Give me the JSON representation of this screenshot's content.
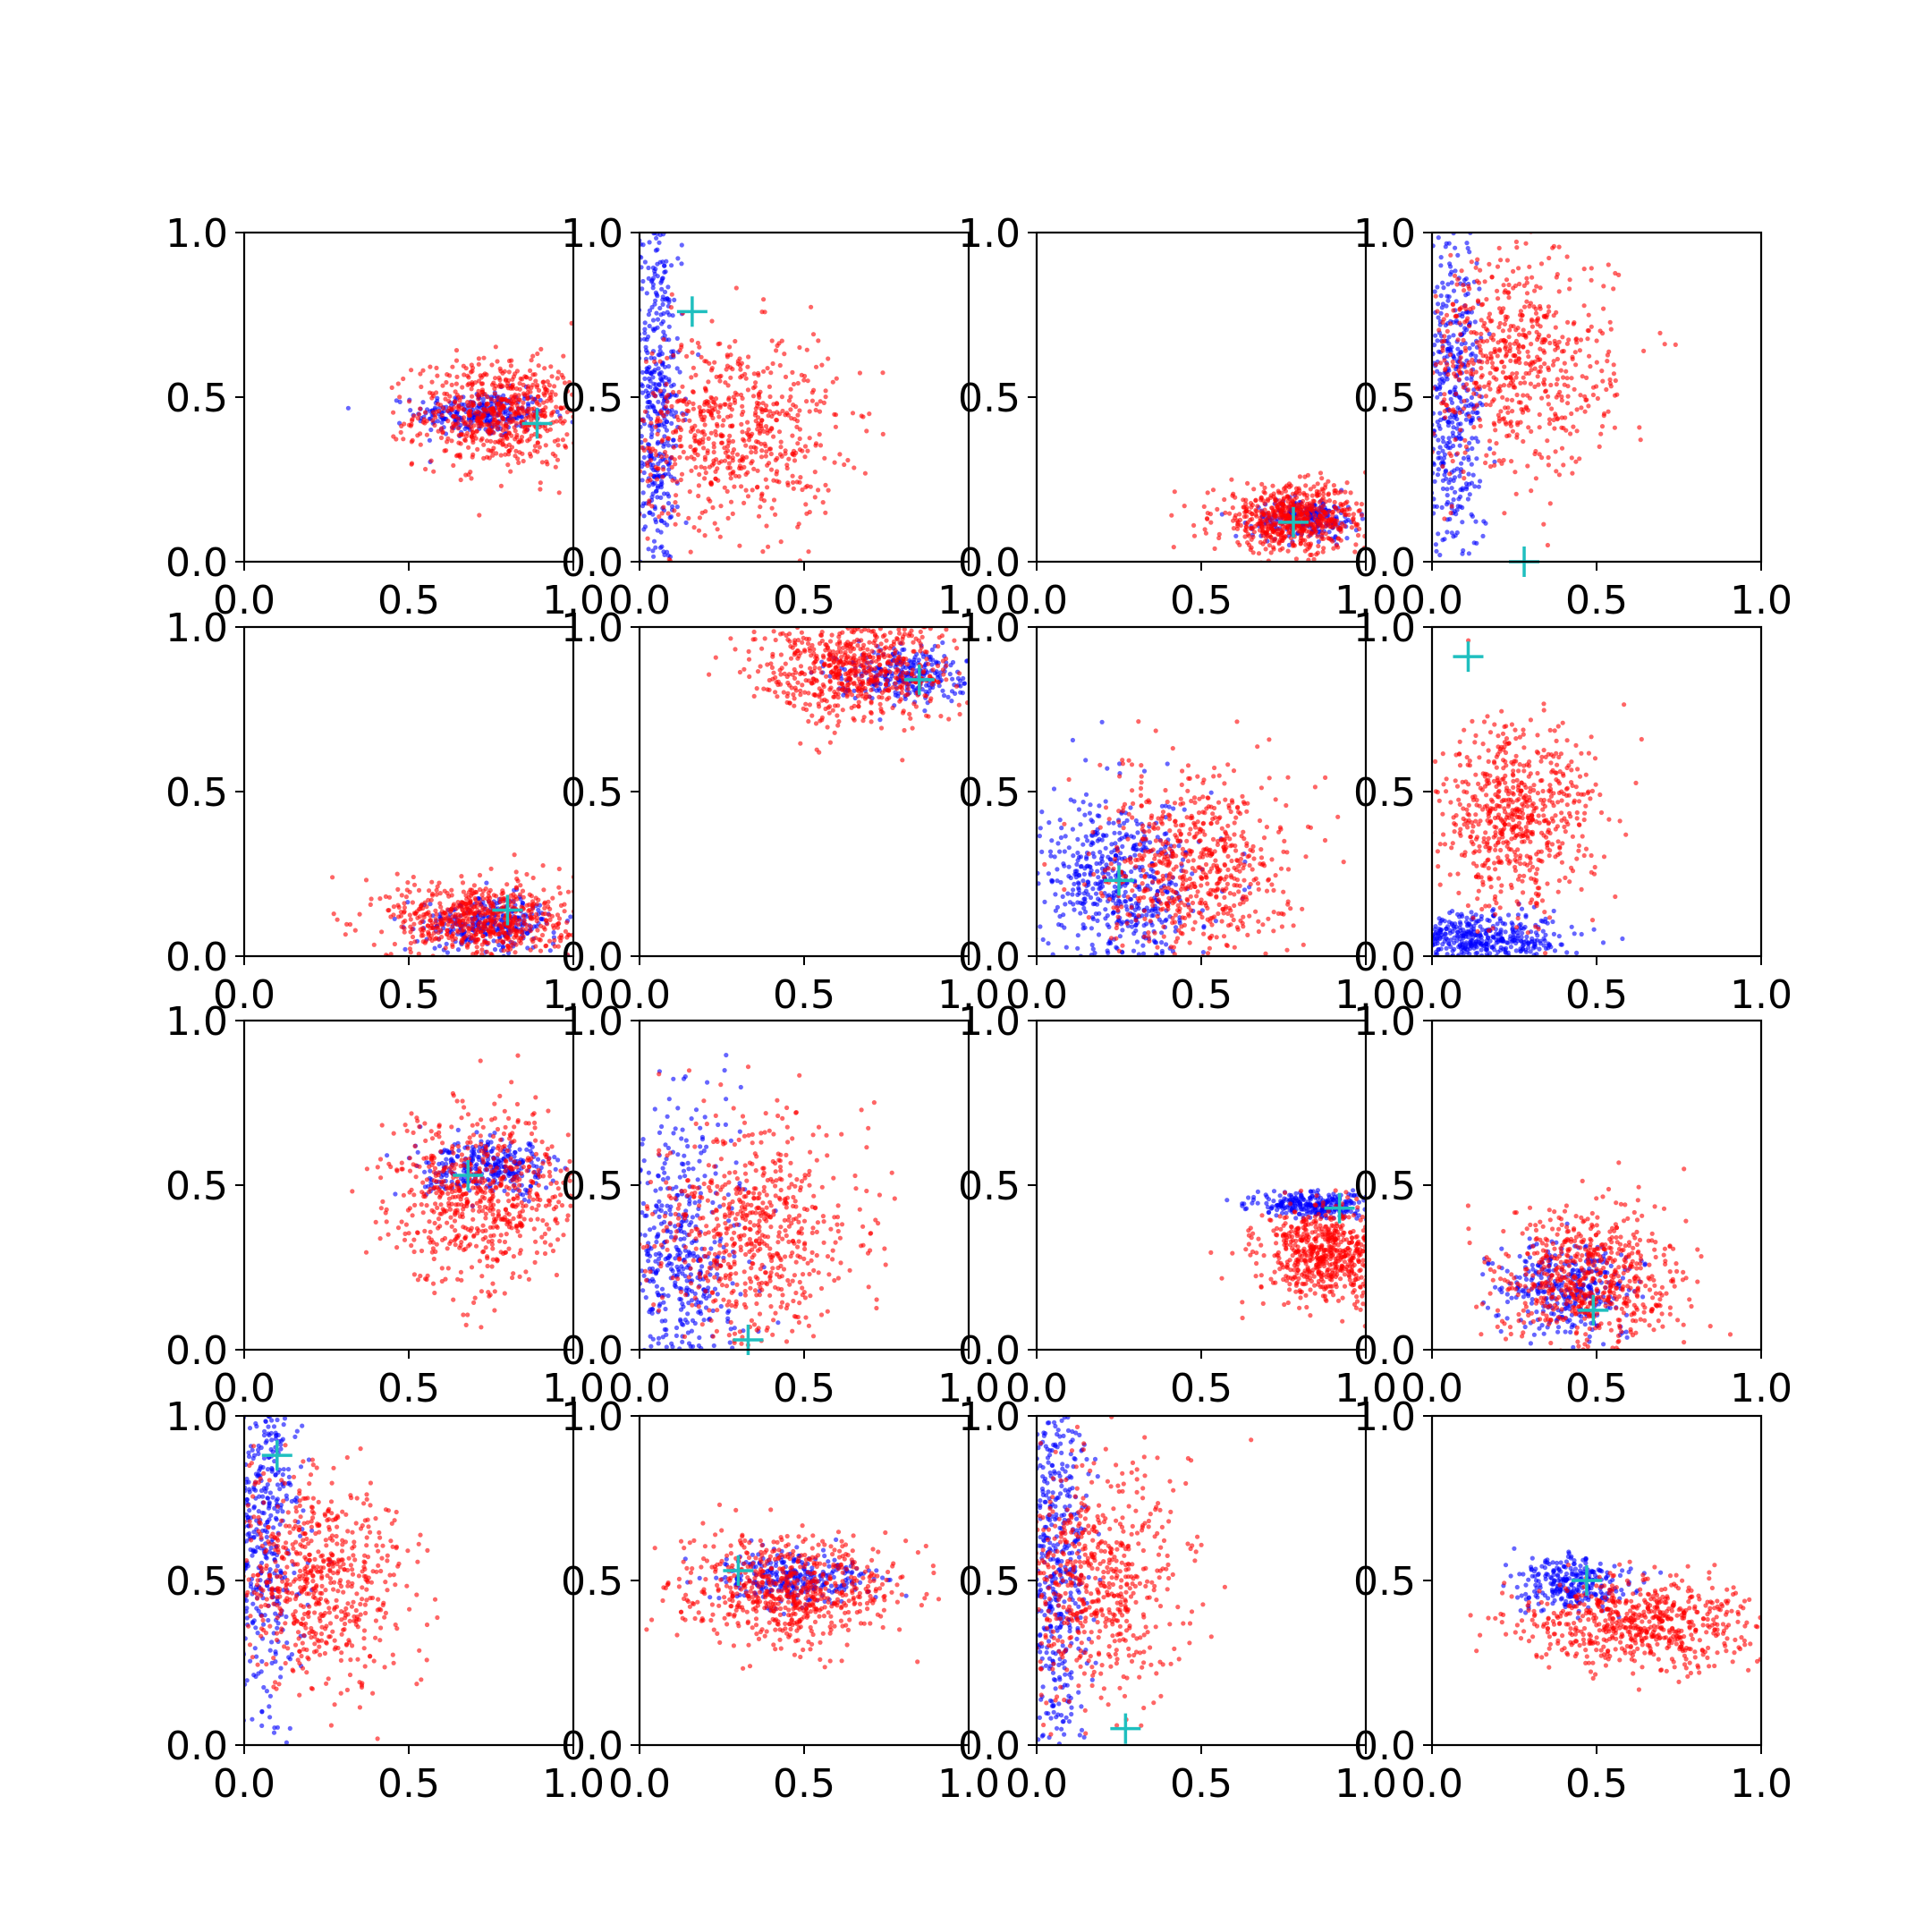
{
  "figure": {
    "background": "#ffffff"
  },
  "chart_data": {
    "type": "scatter",
    "grid_rows": 4,
    "grid_cols": 4,
    "xlim": [
      0,
      1
    ],
    "ylim": [
      0,
      1
    ],
    "x_ticks": [
      "0.0",
      "0.5",
      "1.0"
    ],
    "y_ticks": [
      "0.0",
      "0.5",
      "1.0"
    ],
    "grid": false,
    "legend": "none",
    "colors": {
      "series_blue": "#0000ff",
      "series_red": "#ff0000",
      "marker": "#1fbfbf"
    },
    "panels": [
      {
        "blue": {
          "cx": 0.72,
          "cy": 0.45,
          "sx": 0.1,
          "sy": 0.035,
          "n": 280
        },
        "red": {
          "cx": 0.78,
          "cy": 0.45,
          "sx": 0.13,
          "sy": 0.08,
          "n": 650
        },
        "marker": [
          0.89,
          0.42
        ]
      },
      {
        "blue": {
          "cx": 0.05,
          "cy": 0.5,
          "sx": 0.04,
          "sy": 0.3,
          "n": 480
        },
        "red": {
          "cx": 0.28,
          "cy": 0.4,
          "sx": 0.16,
          "sy": 0.15,
          "n": 650
        },
        "marker": [
          0.16,
          0.76
        ]
      },
      {
        "blue": {
          "cx": 0.82,
          "cy": 0.13,
          "sx": 0.08,
          "sy": 0.03,
          "n": 250
        },
        "red": {
          "cx": 0.78,
          "cy": 0.13,
          "sx": 0.12,
          "sy": 0.05,
          "n": 650
        },
        "marker": [
          0.78,
          0.12
        ]
      },
      {
        "blue": {
          "cx": 0.06,
          "cy": 0.45,
          "sx": 0.05,
          "sy": 0.28,
          "n": 480
        },
        "red": {
          "cx": 0.25,
          "cy": 0.6,
          "sx": 0.15,
          "sy": 0.17,
          "n": 650
        },
        "marker": [
          0.28,
          0.0
        ]
      },
      {
        "blue": {
          "cx": 0.75,
          "cy": 0.1,
          "sx": 0.1,
          "sy": 0.04,
          "n": 300
        },
        "red": {
          "cx": 0.72,
          "cy": 0.11,
          "sx": 0.14,
          "sy": 0.06,
          "n": 650
        },
        "marker": [
          0.8,
          0.14
        ]
      },
      {
        "blue": {
          "cx": 0.8,
          "cy": 0.86,
          "sx": 0.1,
          "sy": 0.04,
          "n": 280
        },
        "red": {
          "cx": 0.65,
          "cy": 0.87,
          "sx": 0.15,
          "sy": 0.08,
          "n": 650
        },
        "marker": [
          0.85,
          0.84
        ]
      },
      {
        "blue": {
          "cx": 0.25,
          "cy": 0.22,
          "sx": 0.12,
          "sy": 0.13,
          "n": 550
        },
        "red": {
          "cx": 0.48,
          "cy": 0.27,
          "sx": 0.14,
          "sy": 0.14,
          "n": 650
        },
        "marker": [
          0.25,
          0.23
        ]
      },
      {
        "blue": {
          "cx": 0.15,
          "cy": 0.05,
          "sx": 0.14,
          "sy": 0.04,
          "n": 500
        },
        "red": {
          "cx": 0.25,
          "cy": 0.42,
          "sx": 0.12,
          "sy": 0.14,
          "n": 650
        },
        "marker": [
          0.11,
          0.91
        ]
      },
      {
        "blue": {
          "cx": 0.75,
          "cy": 0.55,
          "sx": 0.1,
          "sy": 0.04,
          "n": 300
        },
        "red": {
          "cx": 0.72,
          "cy": 0.47,
          "sx": 0.14,
          "sy": 0.13,
          "n": 650
        },
        "marker": [
          0.68,
          0.53
        ]
      },
      {
        "blue": {
          "cx": 0.12,
          "cy": 0.25,
          "sx": 0.1,
          "sy": 0.25,
          "n": 550
        },
        "red": {
          "cx": 0.35,
          "cy": 0.35,
          "sx": 0.15,
          "sy": 0.17,
          "n": 650
        },
        "marker": [
          0.33,
          0.03
        ]
      },
      {
        "blue": {
          "cx": 0.84,
          "cy": 0.44,
          "sx": 0.09,
          "sy": 0.02,
          "n": 280
        },
        "red": {
          "cx": 0.88,
          "cy": 0.29,
          "sx": 0.1,
          "sy": 0.07,
          "n": 650
        },
        "marker": [
          0.92,
          0.43
        ]
      },
      {
        "blue": {
          "cx": 0.42,
          "cy": 0.19,
          "sx": 0.1,
          "sy": 0.07,
          "n": 350
        },
        "red": {
          "cx": 0.47,
          "cy": 0.21,
          "sx": 0.14,
          "sy": 0.11,
          "n": 650
        },
        "marker": [
          0.49,
          0.12
        ]
      },
      {
        "blue": {
          "cx": 0.06,
          "cy": 0.65,
          "sx": 0.06,
          "sy": 0.3,
          "n": 480
        },
        "red": {
          "cx": 0.22,
          "cy": 0.5,
          "sx": 0.14,
          "sy": 0.16,
          "n": 650
        },
        "marker": [
          0.1,
          0.88
        ]
      },
      {
        "blue": {
          "cx": 0.48,
          "cy": 0.51,
          "sx": 0.12,
          "sy": 0.04,
          "n": 300
        },
        "red": {
          "cx": 0.45,
          "cy": 0.47,
          "sx": 0.16,
          "sy": 0.08,
          "n": 650
        },
        "marker": [
          0.3,
          0.53
        ]
      },
      {
        "blue": {
          "cx": 0.06,
          "cy": 0.55,
          "sx": 0.05,
          "sy": 0.3,
          "n": 480
        },
        "red": {
          "cx": 0.18,
          "cy": 0.5,
          "sx": 0.14,
          "sy": 0.18,
          "n": 650
        },
        "marker": [
          0.27,
          0.05
        ]
      },
      {
        "blue": {
          "cx": 0.42,
          "cy": 0.49,
          "sx": 0.08,
          "sy": 0.04,
          "n": 280
        },
        "red": {
          "cx": 0.62,
          "cy": 0.37,
          "sx": 0.18,
          "sy": 0.07,
          "n": 650
        },
        "marker": [
          0.47,
          0.5
        ]
      }
    ]
  }
}
